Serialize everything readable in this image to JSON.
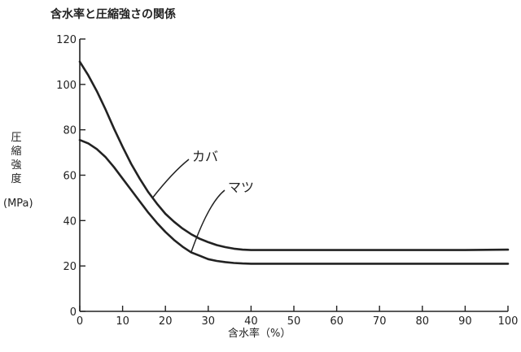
{
  "chart_data": {
    "type": "line",
    "title": "含水率と圧縮強さの関係",
    "xlabel": "含水率（%）",
    "ylabel_lines": [
      "圧",
      "縮",
      "強",
      "度"
    ],
    "yunit": "(MPa)",
    "xlim": [
      0,
      100
    ],
    "ylim": [
      0,
      120
    ],
    "xticks": [
      0,
      10,
      20,
      30,
      40,
      50,
      60,
      70,
      80,
      90,
      100
    ],
    "yticks": [
      0,
      20,
      40,
      60,
      80,
      100,
      120
    ],
    "grid": false,
    "series": [
      {
        "name": "カバ",
        "x": [
          0,
          2,
          4,
          6,
          8,
          10,
          12,
          14,
          16,
          18,
          20,
          22,
          24,
          26,
          28,
          30,
          32,
          34,
          36,
          38,
          40,
          45,
          50,
          60,
          70,
          80,
          90,
          100
        ],
        "y": [
          110,
          104,
          97,
          89,
          80.5,
          72.5,
          65,
          58.5,
          52.5,
          47.5,
          43,
          39.5,
          36.5,
          34,
          32,
          30.5,
          29.2,
          28.3,
          27.6,
          27.2,
          27,
          27,
          27,
          27,
          27,
          27,
          27,
          27.2
        ]
      },
      {
        "name": "マツ",
        "x": [
          0,
          2,
          4,
          6,
          8,
          10,
          12,
          14,
          16,
          18,
          20,
          22,
          24,
          26,
          28,
          30,
          32,
          34,
          36,
          38,
          40,
          45,
          50,
          60,
          70,
          80,
          90,
          100
        ],
        "y": [
          75.5,
          74,
          71.5,
          68,
          63.5,
          58.5,
          53.5,
          48.5,
          43.5,
          39,
          35,
          31.5,
          28.5,
          26,
          24.5,
          23,
          22.2,
          21.7,
          21.3,
          21.1,
          21,
          21,
          21,
          21,
          21,
          21,
          21,
          21
        ]
      }
    ]
  }
}
